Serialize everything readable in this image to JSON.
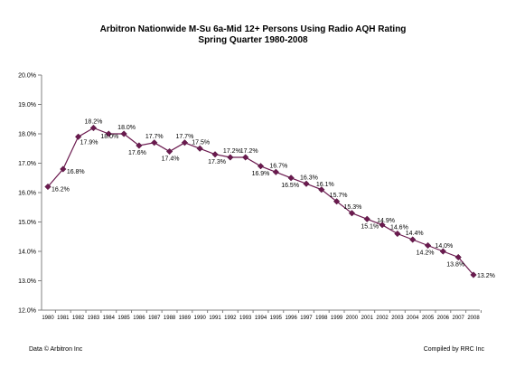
{
  "chart_data": {
    "type": "line",
    "title": "Arbitron Nationwide M-Su 6a-Mid 12+ Persons Using Radio AQH Rating",
    "subtitle": "Spring Quarter 1980-2008",
    "x": [
      "1980",
      "1981",
      "1982",
      "1983",
      "1984",
      "1985",
      "1986",
      "1987",
      "1988",
      "1989",
      "1990",
      "1991",
      "1992",
      "1993",
      "1994",
      "1995",
      "1996",
      "1997",
      "1998",
      "1999",
      "2000",
      "2001",
      "2002",
      "2003",
      "2004",
      "2005",
      "2006",
      "2007",
      "2008"
    ],
    "series": [
      {
        "values": [
          16.2,
          16.8,
          17.9,
          18.2,
          18.0,
          18.0,
          17.6,
          17.7,
          17.4,
          17.7,
          17.5,
          17.3,
          17.2,
          17.2,
          16.9,
          16.7,
          16.5,
          16.3,
          16.1,
          15.7,
          15.3,
          15.1,
          14.9,
          14.6,
          14.4,
          14.2,
          14.0,
          13.8,
          13.2
        ],
        "labels": [
          "16.2%",
          "16.8%",
          "17.9%",
          "18.2%",
          "18.0%",
          "18.0%",
          "17.6%",
          "17.7%",
          "17.4%",
          "17.7%",
          "17.5%",
          "17.3%",
          "17.2%",
          "17.2%",
          "16.9%",
          "16.7%",
          "16.5%",
          "16.3%",
          "16.1%",
          "15.7%",
          "15.3%",
          "15.1%",
          "14.9%",
          "14.6%",
          "14.4%",
          "14.2%",
          "14.0%",
          "13.8%",
          "13.2%"
        ]
      }
    ],
    "y_ticks": [
      "12.0%",
      "13.0%",
      "14.0%",
      "15.0%",
      "16.0%",
      "17.0%",
      "18.0%",
      "19.0%",
      "20.0%"
    ],
    "ylim": [
      12.0,
      20.0
    ],
    "grid": false,
    "colors": {
      "line": "#6b1a4f",
      "marker": "#6b1a4f",
      "axis": "#808080"
    }
  },
  "footer": {
    "left": "Data © Arbitron Inc",
    "right": "Compiled by RRC Inc"
  }
}
